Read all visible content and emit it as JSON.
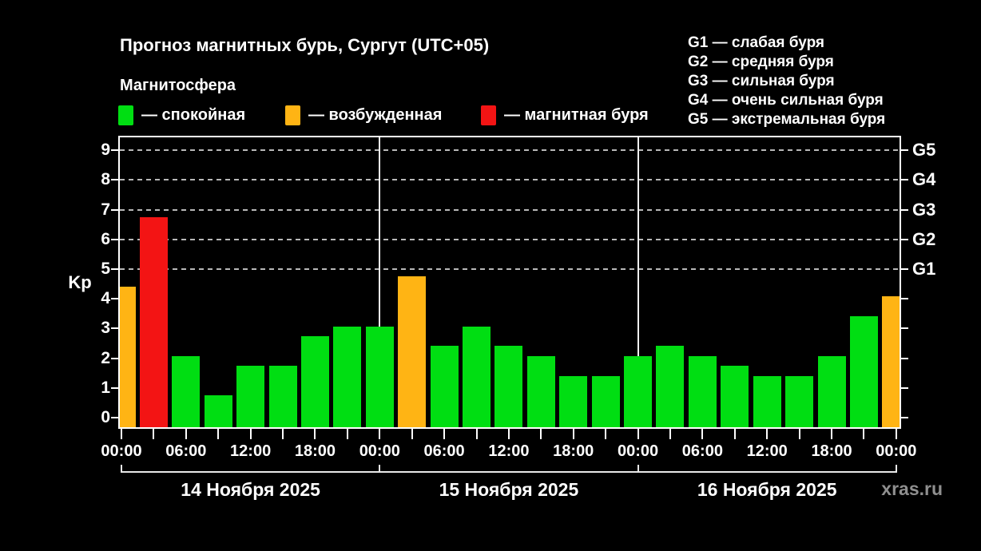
{
  "header": {
    "title": "Прогноз магнитных бурь, Сургут (UTC+05)",
    "subtitle": "Магнитосфера"
  },
  "legend": {
    "items": [
      {
        "label": "— спокойная",
        "status": "quiet"
      },
      {
        "label": "— возбужденная",
        "status": "excited"
      },
      {
        "label": "— магнитная буря",
        "status": "storm"
      }
    ]
  },
  "storm_scale": [
    "G1 — слабая буря",
    "G2 — средняя буря",
    "G3 — сильная буря",
    "G4 — очень сильная буря",
    "G5 — экстремальная буря"
  ],
  "watermark": "xras.ru",
  "chart_data": {
    "type": "bar",
    "title": "Прогноз магнитных бурь, Сургут (UTC+05)",
    "subtitle": "Магнитосфера",
    "ylabel": "Kp",
    "ylim": [
      -0.4,
      9.5
    ],
    "y_ticks": [
      0,
      1,
      2,
      3,
      4,
      5,
      6,
      7,
      8,
      9
    ],
    "grid_kp_levels": [
      5,
      6,
      7,
      8,
      9
    ],
    "right_axis_labels": [
      {
        "kp": 5,
        "label": "G1"
      },
      {
        "kp": 6,
        "label": "G2"
      },
      {
        "kp": 7,
        "label": "G3"
      },
      {
        "kp": 8,
        "label": "G4"
      },
      {
        "kp": 9,
        "label": "G5"
      }
    ],
    "x_axis": {
      "hours_span": 72,
      "tick_step_hours": 3,
      "label_step_hours": 6,
      "time_labels": [
        "00:00",
        "06:00",
        "12:00",
        "18:00"
      ]
    },
    "days": [
      {
        "label": "14 Ноября 2025",
        "start_hour": 0,
        "end_hour": 24
      },
      {
        "label": "15 Ноября 2025",
        "start_hour": 24,
        "end_hour": 48
      },
      {
        "label": "16 Ноября 2025",
        "start_hour": 48,
        "end_hour": 72
      }
    ],
    "colors": {
      "quiet": "#00DE12",
      "excited": "#FFB414",
      "storm": "#F31414"
    },
    "bars": [
      {
        "hour": 0,
        "kp": 4.33,
        "status": "excited"
      },
      {
        "hour": 3,
        "kp": 6.67,
        "status": "storm"
      },
      {
        "hour": 6,
        "kp": 2.0,
        "status": "quiet"
      },
      {
        "hour": 9,
        "kp": 0.67,
        "status": "quiet"
      },
      {
        "hour": 12,
        "kp": 1.67,
        "status": "quiet"
      },
      {
        "hour": 15,
        "kp": 1.67,
        "status": "quiet"
      },
      {
        "hour": 18,
        "kp": 2.67,
        "status": "quiet"
      },
      {
        "hour": 21,
        "kp": 3.0,
        "status": "quiet"
      },
      {
        "hour": 24,
        "kp": 3.0,
        "status": "quiet"
      },
      {
        "hour": 27,
        "kp": 4.67,
        "status": "excited"
      },
      {
        "hour": 30,
        "kp": 2.33,
        "status": "quiet"
      },
      {
        "hour": 33,
        "kp": 3.0,
        "status": "quiet"
      },
      {
        "hour": 36,
        "kp": 2.33,
        "status": "quiet"
      },
      {
        "hour": 39,
        "kp": 2.0,
        "status": "quiet"
      },
      {
        "hour": 42,
        "kp": 1.33,
        "status": "quiet"
      },
      {
        "hour": 45,
        "kp": 1.33,
        "status": "quiet"
      },
      {
        "hour": 48,
        "kp": 2.0,
        "status": "quiet"
      },
      {
        "hour": 51,
        "kp": 2.33,
        "status": "quiet"
      },
      {
        "hour": 54,
        "kp": 2.0,
        "status": "quiet"
      },
      {
        "hour": 57,
        "kp": 1.67,
        "status": "quiet"
      },
      {
        "hour": 60,
        "kp": 1.33,
        "status": "quiet"
      },
      {
        "hour": 63,
        "kp": 1.33,
        "status": "quiet"
      },
      {
        "hour": 66,
        "kp": 2.0,
        "status": "quiet"
      },
      {
        "hour": 69,
        "kp": 3.33,
        "status": "quiet"
      },
      {
        "hour": 72,
        "kp": 4.0,
        "status": "excited"
      }
    ]
  }
}
